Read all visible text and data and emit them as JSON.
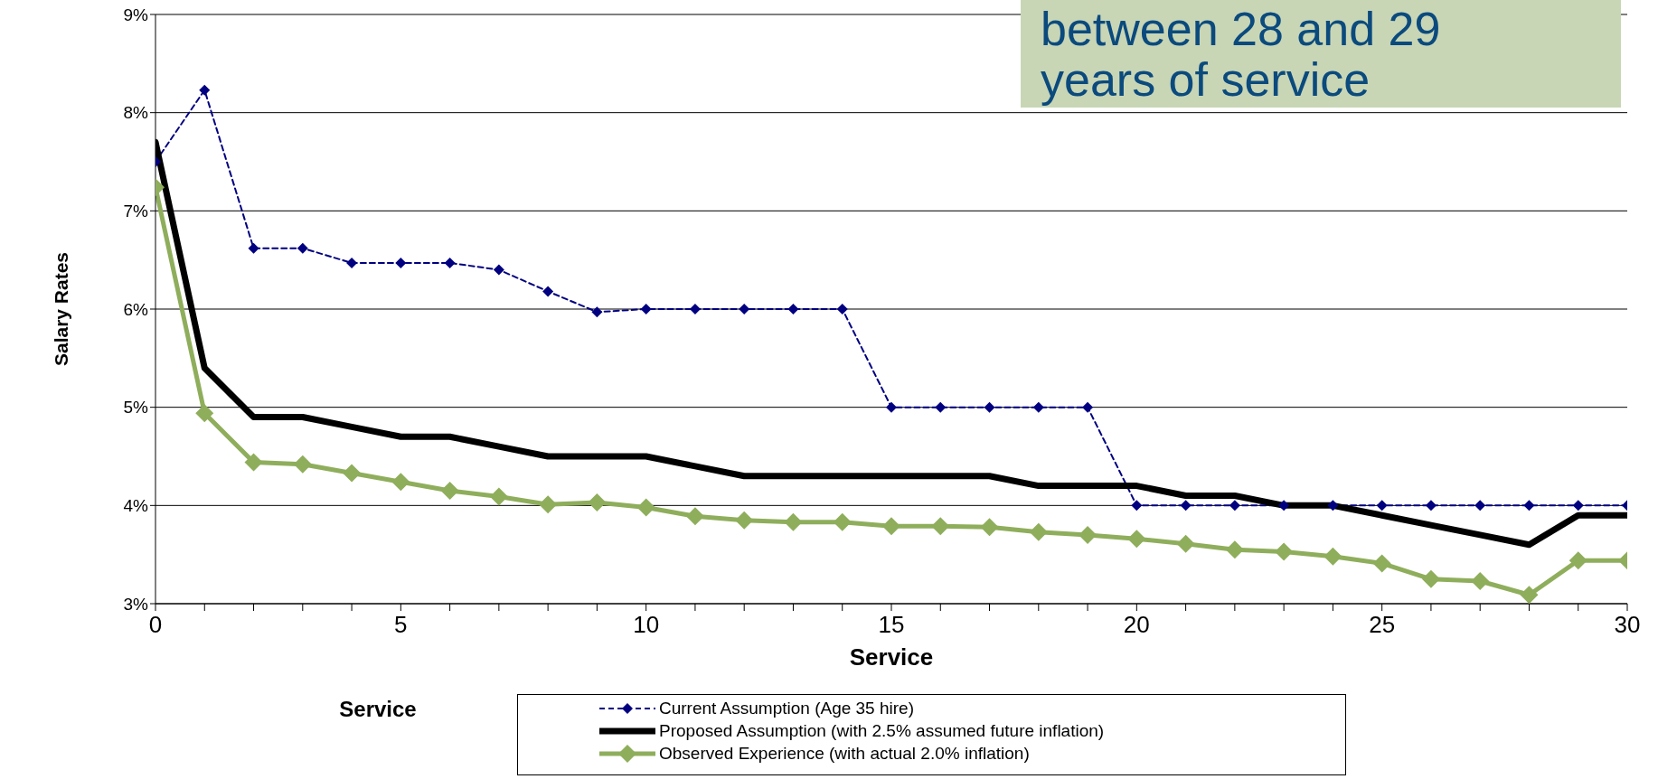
{
  "chart_data": {
    "type": "line",
    "xlabel": "Service",
    "ylabel": "Salary Rates",
    "annotations": [
      "between 28 and 29 years of service",
      "Service"
    ],
    "x": [
      0,
      1,
      2,
      3,
      4,
      5,
      6,
      7,
      8,
      9,
      10,
      11,
      12,
      13,
      14,
      15,
      16,
      17,
      18,
      19,
      20,
      21,
      22,
      23,
      24,
      25,
      26,
      27,
      28,
      29,
      30
    ],
    "series": [
      {
        "name": "Current Assumption (Age 35 hire)",
        "color": "#000080",
        "marker": "diamond",
        "line_style": "dashed",
        "values": [
          7.5,
          8.23,
          6.62,
          6.62,
          6.47,
          6.47,
          6.47,
          6.4,
          6.18,
          5.97,
          6.0,
          6.0,
          6.0,
          6.0,
          6.0,
          5.0,
          5.0,
          5.0,
          5.0,
          5.0,
          4.0,
          4.0,
          4.0,
          4.0,
          4.0,
          4.0,
          4.0,
          4.0,
          4.0,
          4.0,
          4.0
        ]
      },
      {
        "name": "Proposed Assumption (with 2.5% assumed future inflation)",
        "color": "#000000",
        "marker": "none",
        "line_style": "solid",
        "values": [
          7.7,
          5.4,
          4.9,
          4.9,
          4.8,
          4.7,
          4.7,
          4.6,
          4.5,
          4.5,
          4.5,
          4.4,
          4.3,
          4.3,
          4.3,
          4.3,
          4.3,
          4.3,
          4.2,
          4.2,
          4.2,
          4.1,
          4.1,
          4.0,
          4.0,
          3.9,
          3.8,
          3.7,
          3.6,
          3.9,
          3.9
        ]
      },
      {
        "name": "Observed Experience (with actual 2.0% inflation)",
        "color": "#8fae5c",
        "marker": "diamond",
        "line_style": "solid",
        "values": [
          7.24,
          4.94,
          4.44,
          4.42,
          4.33,
          4.24,
          4.15,
          4.09,
          4.01,
          4.03,
          3.98,
          3.89,
          3.85,
          3.83,
          3.83,
          3.79,
          3.79,
          3.78,
          3.73,
          3.7,
          3.66,
          3.61,
          3.55,
          3.53,
          3.48,
          3.41,
          3.25,
          3.23,
          3.09,
          3.44,
          3.44
        ]
      }
    ],
    "xlim": [
      0,
      30
    ],
    "xticks": [
      0,
      {
        "value": 1,
        "label": null
      },
      {
        "value": 2,
        "label": null
      },
      {
        "value": 3,
        "label": null
      },
      {
        "value": 4,
        "label": null
      },
      5,
      {
        "value": 6,
        "label": null
      },
      {
        "value": 7,
        "label": null
      },
      {
        "value": 8,
        "label": null
      },
      {
        "value": 9,
        "label": null
      },
      10,
      {
        "value": 11,
        "label": null
      },
      {
        "value": 12,
        "label": null
      },
      {
        "value": 13,
        "label": null
      },
      {
        "value": 14,
        "label": null
      },
      15,
      {
        "value": 16,
        "label": null
      },
      {
        "value": 17,
        "label": null
      },
      {
        "value": 18,
        "label": null
      },
      {
        "value": 19,
        "label": null
      },
      20,
      {
        "value": 21,
        "label": null
      },
      {
        "value": 22,
        "label": null
      },
      {
        "value": 23,
        "label": null
      },
      {
        "value": 24,
        "label": null
      },
      25,
      {
        "value": 26,
        "label": null
      },
      {
        "value": 27,
        "label": null
      },
      {
        "value": 28,
        "label": null
      },
      {
        "value": 29,
        "label": null
      },
      30
    ],
    "ylim": [
      3,
      9
    ],
    "yticks": [
      {
        "value": 3,
        "label": "3%"
      },
      {
        "value": 4,
        "label": "4%"
      },
      {
        "value": 5,
        "label": "5%"
      },
      {
        "value": 6,
        "label": "6%"
      },
      {
        "value": 7,
        "label": "7%"
      },
      {
        "value": 8,
        "label": "8%"
      },
      {
        "value": 9,
        "label": "9%"
      }
    ],
    "grid": "y",
    "legend": "bottom"
  }
}
